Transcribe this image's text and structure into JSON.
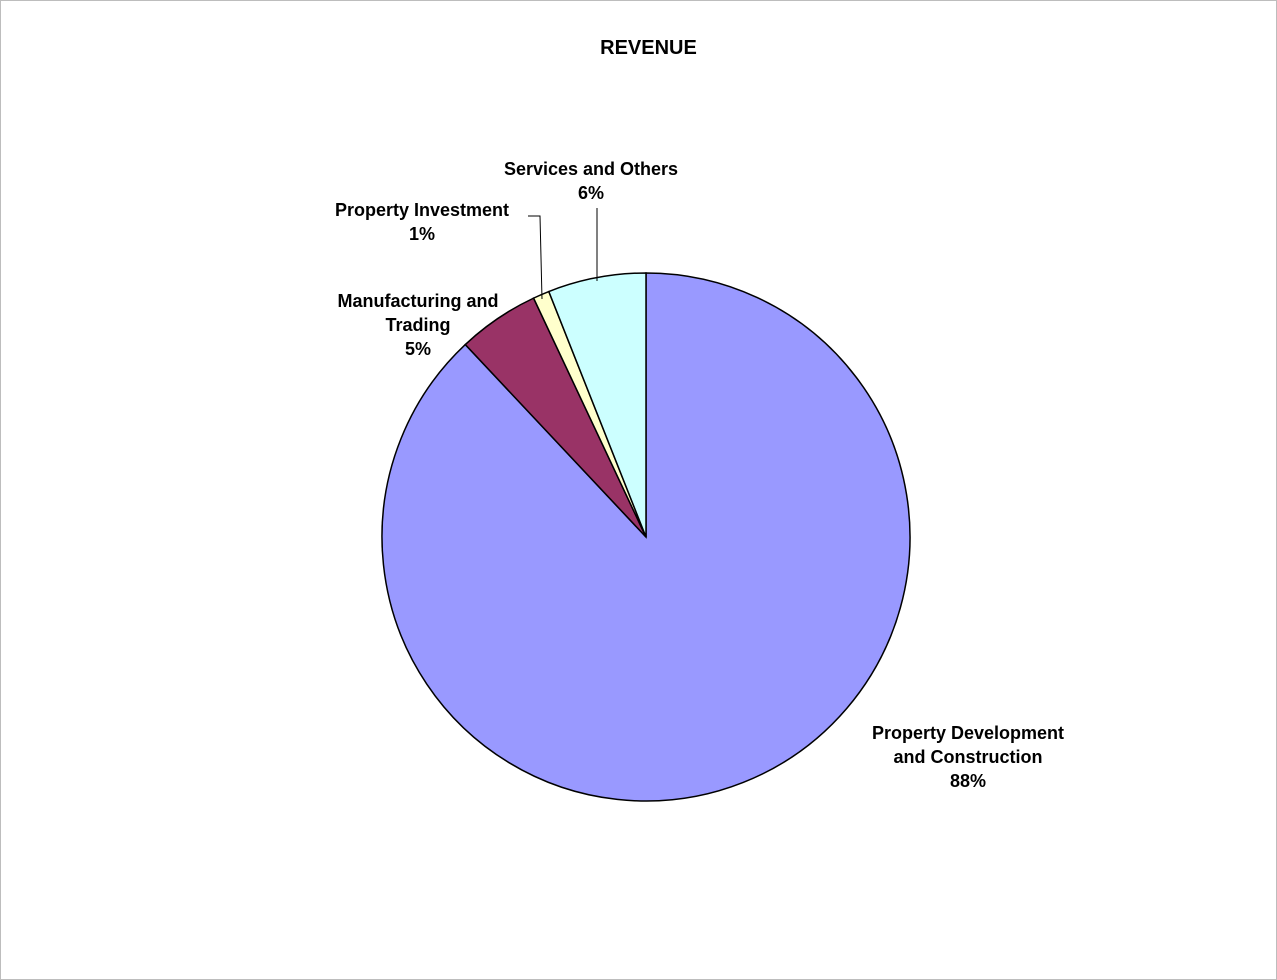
{
  "chart_data": {
    "type": "pie",
    "title": "REVENUE",
    "start_angle_deg": 0,
    "direction": "clockwise",
    "slices": [
      {
        "label_lines": [
          "Property Development",
          "and Construction"
        ],
        "percent_label": "88%",
        "value": 88,
        "color": "#9999FF"
      },
      {
        "label_lines": [
          "Manufacturing and",
          "Trading"
        ],
        "percent_label": "5%",
        "value": 5,
        "color": "#993366"
      },
      {
        "label_lines": [
          "Property Investment"
        ],
        "percent_label": "1%",
        "value": 1,
        "color": "#FFFFCC"
      },
      {
        "label_lines": [
          "Services and Others"
        ],
        "percent_label": "6%",
        "value": 6,
        "color": "#CCFFFF"
      }
    ]
  }
}
